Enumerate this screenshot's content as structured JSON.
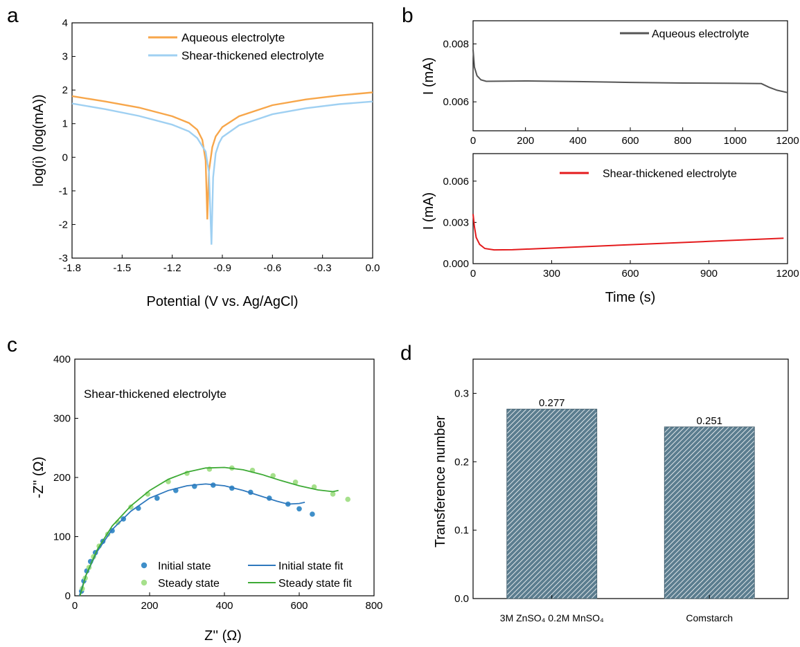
{
  "panels": {
    "a": "a",
    "b": "b",
    "c": "c",
    "d": "d"
  },
  "colors": {
    "aqueous_a": "#f7a64a",
    "shear_a": "#9fd0f2",
    "aqueous_b": "#555555",
    "shear_b": "#e41a1c",
    "initial": "#3f8fc9",
    "steady": "#a6e08c",
    "initial_fit": "#2e78bd",
    "steady_fit": "#3daa35",
    "bar_fill": "#5b7d8f"
  },
  "chart_data": [
    {
      "id": "a",
      "type": "line",
      "xlabel": "Potential (V vs. Ag/AgCl)",
      "ylabel": "log(i) (log(mA))",
      "xlim": [
        -1.8,
        0.0
      ],
      "ylim": [
        -3,
        4
      ],
      "xticks": [
        "-1.8",
        "-1.5",
        "-1.2",
        "-0.9",
        "-0.6",
        "-0.3",
        "0.0"
      ],
      "yticks": [
        "-3",
        "-2",
        "-1",
        "0",
        "1",
        "2",
        "3",
        "4"
      ],
      "legend_position": "top-left",
      "series": [
        {
          "name": "Aqueous electrolyte",
          "points": [
            [
              -1.8,
              1.82
            ],
            [
              -1.6,
              1.66
            ],
            [
              -1.4,
              1.48
            ],
            [
              -1.2,
              1.22
            ],
            [
              -1.1,
              1.02
            ],
            [
              -1.05,
              0.82
            ],
            [
              -1.02,
              0.52
            ],
            [
              -1.0,
              -0.1
            ],
            [
              -0.99,
              -1.85
            ],
            [
              -0.98,
              -0.4
            ],
            [
              -0.96,
              0.3
            ],
            [
              -0.94,
              0.62
            ],
            [
              -0.9,
              0.9
            ],
            [
              -0.8,
              1.22
            ],
            [
              -0.6,
              1.55
            ],
            [
              -0.4,
              1.72
            ],
            [
              -0.2,
              1.84
            ],
            [
              0.0,
              1.93
            ]
          ]
        },
        {
          "name": "Shear-thickened electrolyte",
          "points": [
            [
              -1.8,
              1.6
            ],
            [
              -1.6,
              1.43
            ],
            [
              -1.4,
              1.23
            ],
            [
              -1.2,
              0.97
            ],
            [
              -1.1,
              0.77
            ],
            [
              -1.05,
              0.57
            ],
            [
              -1.0,
              0.17
            ],
            [
              -0.98,
              -0.45
            ],
            [
              -0.965,
              -2.6
            ],
            [
              -0.955,
              -0.6
            ],
            [
              -0.94,
              0.12
            ],
            [
              -0.92,
              0.42
            ],
            [
              -0.9,
              0.6
            ],
            [
              -0.8,
              0.95
            ],
            [
              -0.6,
              1.28
            ],
            [
              -0.4,
              1.46
            ],
            [
              -0.2,
              1.58
            ],
            [
              0.0,
              1.66
            ]
          ]
        }
      ]
    },
    {
      "id": "b-top",
      "type": "line",
      "ylabel": "I (mA)",
      "xlim": [
        0,
        1200
      ],
      "ylim": [
        0.005,
        0.0088
      ],
      "xticks": [
        "0",
        "200",
        "400",
        "600",
        "800",
        "1000",
        "1200"
      ],
      "yticks": [
        "0.006",
        "0.008"
      ],
      "legend_position": "top-right",
      "series": [
        {
          "name": "Aqueous electrolyte",
          "points": [
            [
              0,
              0.0078
            ],
            [
              5,
              0.0072
            ],
            [
              15,
              0.0069
            ],
            [
              30,
              0.00676
            ],
            [
              50,
              0.00671
            ],
            [
              200,
              0.00672
            ],
            [
              400,
              0.0067
            ],
            [
              600,
              0.00667
            ],
            [
              800,
              0.00665
            ],
            [
              1000,
              0.00664
            ],
            [
              1100,
              0.00663
            ],
            [
              1130,
              0.0065
            ],
            [
              1160,
              0.0064
            ],
            [
              1200,
              0.00632
            ]
          ]
        }
      ]
    },
    {
      "id": "b-bottom",
      "type": "line",
      "xlabel": "Time (s)",
      "ylabel": "I (mA)",
      "xlim": [
        0,
        1200
      ],
      "ylim": [
        0,
        0.008
      ],
      "xticks": [
        "0",
        "300",
        "600",
        "900",
        "1200"
      ],
      "yticks": [
        "0.000",
        "0.003",
        "0.006"
      ],
      "legend_position": "top-right",
      "series": [
        {
          "name": "Shear-thickened electrolyte",
          "points": [
            [
              0,
              0.0036
            ],
            [
              5,
              0.0027
            ],
            [
              12,
              0.0019
            ],
            [
              25,
              0.0014
            ],
            [
              45,
              0.0011
            ],
            [
              80,
              0.001
            ],
            [
              150,
              0.00101
            ],
            [
              300,
              0.00113
            ],
            [
              600,
              0.00138
            ],
            [
              900,
              0.00162
            ],
            [
              1185,
              0.00185
            ]
          ]
        }
      ]
    },
    {
      "id": "c",
      "type": "scatter",
      "xlabel": "Z'' (Ω)",
      "ylabel": "-Z'' (Ω)",
      "annotation": "Shear-thickened electrolyte",
      "xlim": [
        0,
        800
      ],
      "ylim": [
        0,
        400
      ],
      "xticks": [
        "0",
        "200",
        "400",
        "600",
        "800"
      ],
      "yticks": [
        "0",
        "100",
        "200",
        "300",
        "400"
      ],
      "legend_position": "bottom-right",
      "series": [
        {
          "name": "Initial state",
          "kind": "points",
          "points": [
            [
              18,
              8
            ],
            [
              24,
              25
            ],
            [
              32,
              42
            ],
            [
              42,
              58
            ],
            [
              55,
              73
            ],
            [
              75,
              92
            ],
            [
              100,
              110
            ],
            [
              130,
              130
            ],
            [
              170,
              148
            ],
            [
              220,
              165
            ],
            [
              270,
              178
            ],
            [
              320,
              185
            ],
            [
              370,
              187
            ],
            [
              420,
              182
            ],
            [
              470,
              175
            ],
            [
              520,
              165
            ],
            [
              570,
              155
            ],
            [
              600,
              147
            ],
            [
              635,
              138
            ]
          ]
        },
        {
          "name": "Steady state",
          "kind": "points",
          "points": [
            [
              20,
              12
            ],
            [
              28,
              30
            ],
            [
              38,
              48
            ],
            [
              50,
              66
            ],
            [
              65,
              84
            ],
            [
              88,
              104
            ],
            [
              115,
              124
            ],
            [
              150,
              150
            ],
            [
              195,
              172
            ],
            [
              250,
              193
            ],
            [
              300,
              207
            ],
            [
              360,
              214
            ],
            [
              420,
              216
            ],
            [
              475,
              212
            ],
            [
              530,
              203
            ],
            [
              590,
              192
            ],
            [
              640,
              184
            ],
            [
              690,
              172
            ],
            [
              730,
              163
            ]
          ]
        },
        {
          "name": "Initial state fit",
          "kind": "line",
          "points": [
            [
              12,
              0
            ],
            [
              30,
              35
            ],
            [
              60,
              75
            ],
            [
              100,
              112
            ],
            [
              150,
              143
            ],
            [
              200,
              165
            ],
            [
              250,
              178
            ],
            [
              300,
              186
            ],
            [
              350,
              189
            ],
            [
              400,
              186
            ],
            [
              450,
              178
            ],
            [
              500,
              168
            ],
            [
              540,
              160
            ],
            [
              570,
              155
            ],
            [
              600,
              156
            ],
            [
              615,
              158
            ]
          ]
        },
        {
          "name": "Steady state fit",
          "kind": "line",
          "points": [
            [
              14,
              0
            ],
            [
              30,
              35
            ],
            [
              60,
              78
            ],
            [
              100,
              118
            ],
            [
              150,
              152
            ],
            [
              200,
              178
            ],
            [
              250,
              197
            ],
            [
              300,
              209
            ],
            [
              350,
              216
            ],
            [
              400,
              217
            ],
            [
              450,
              213
            ],
            [
              500,
              205
            ],
            [
              550,
              195
            ],
            [
              600,
              186
            ],
            [
              650,
              179
            ],
            [
              690,
              176
            ],
            [
              705,
              178
            ]
          ]
        }
      ]
    },
    {
      "id": "d",
      "type": "bar",
      "ylabel": "Transference number",
      "categories": [
        "3M ZnSO₄ 0.2M MnSO₄",
        "Comstarch"
      ],
      "values": [
        0.277,
        0.251
      ],
      "value_labels": [
        "0.277",
        "0.251"
      ],
      "ylim": [
        0,
        0.35
      ],
      "yticks": [
        "0.0",
        "0.1",
        "0.2",
        "0.3"
      ]
    }
  ]
}
